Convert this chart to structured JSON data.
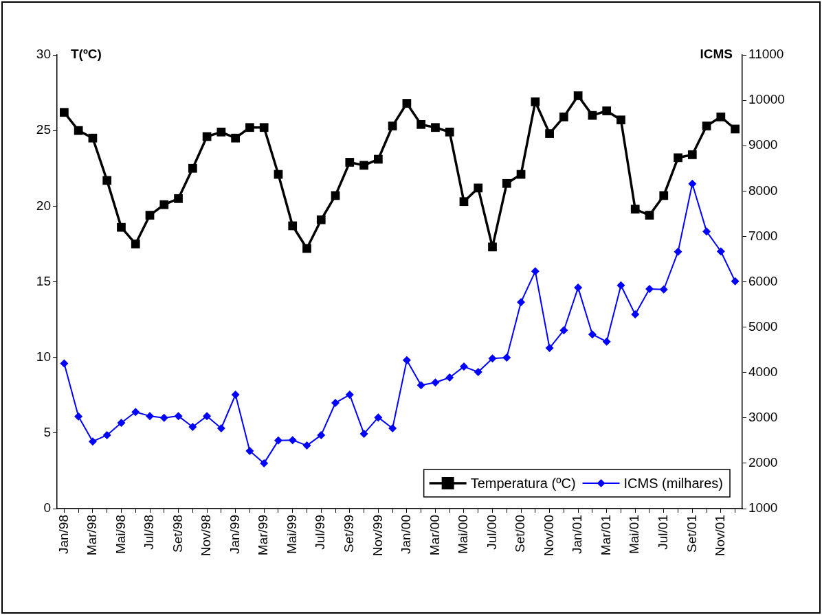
{
  "chart_data": {
    "type": "line",
    "ylabel": "T(ºC)",
    "y2label": "ICMS",
    "categories": [
      "Jan/98",
      null,
      "Mar/98",
      null,
      "Mai/98",
      null,
      "Jul/98",
      null,
      "Set/98",
      null,
      "Nov/98",
      null,
      "Jan/99",
      null,
      "Mar/99",
      null,
      "Mai/99",
      null,
      "Jul/99",
      null,
      "Set/99",
      null,
      "Nov/99",
      null,
      "Jan/00",
      null,
      "Mar/00",
      null,
      "Mai/00",
      null,
      "Jul/00",
      null,
      "Set/00",
      null,
      "Nov/00",
      null,
      "Jan/01",
      null,
      "Mar/01",
      null,
      "Mai/01",
      null,
      "Jul/01",
      null,
      "Set/01",
      null,
      "Nov/01",
      null
    ],
    "series": [
      {
        "name": "Temperatura (ºC)",
        "color": "#000000",
        "marker": "square",
        "values": [
          26.2,
          25.0,
          24.5,
          21.7,
          18.6,
          17.5,
          19.4,
          20.1,
          20.5,
          22.5,
          24.6,
          24.9,
          24.5,
          25.2,
          25.2,
          22.1,
          18.7,
          17.2,
          19.1,
          20.7,
          22.9,
          22.7,
          23.1,
          25.3,
          26.8,
          25.4,
          25.2,
          24.9,
          20.3,
          21.2,
          17.3,
          21.5,
          22.1,
          26.9,
          24.8,
          25.9,
          27.3,
          26.0,
          26.3,
          25.7,
          19.8,
          19.4,
          20.7,
          23.2,
          23.4,
          25.3,
          25.9,
          25.1
        ]
      },
      {
        "name": "ICMS (milhares)",
        "color": "#0000ff",
        "marker": "diamond",
        "axis": "y2",
        "values": [
          4200,
          3030,
          2480,
          2620,
          2890,
          3130,
          3040,
          3000,
          3040,
          2800,
          3040,
          2770,
          3510,
          2270,
          2000,
          2500,
          2510,
          2390,
          2620,
          3330,
          3510,
          2650,
          3010,
          2770,
          4270,
          3720,
          3780,
          3890,
          4130,
          4010,
          4310,
          4330,
          5550,
          6230,
          4540,
          4930,
          5870,
          4840,
          4680,
          5920,
          5280,
          5840,
          5830,
          6660,
          8160,
          7110,
          6670,
          6010
        ]
      }
    ],
    "ylim": [
      0,
      30
    ],
    "yticks": [
      0,
      5,
      10,
      15,
      20,
      25,
      30
    ],
    "y2lim": [
      1000,
      11000
    ],
    "y2ticks": [
      1000,
      2000,
      3000,
      4000,
      5000,
      6000,
      7000,
      8000,
      9000,
      10000,
      11000
    ],
    "grid": false,
    "legend": "bottom right"
  }
}
